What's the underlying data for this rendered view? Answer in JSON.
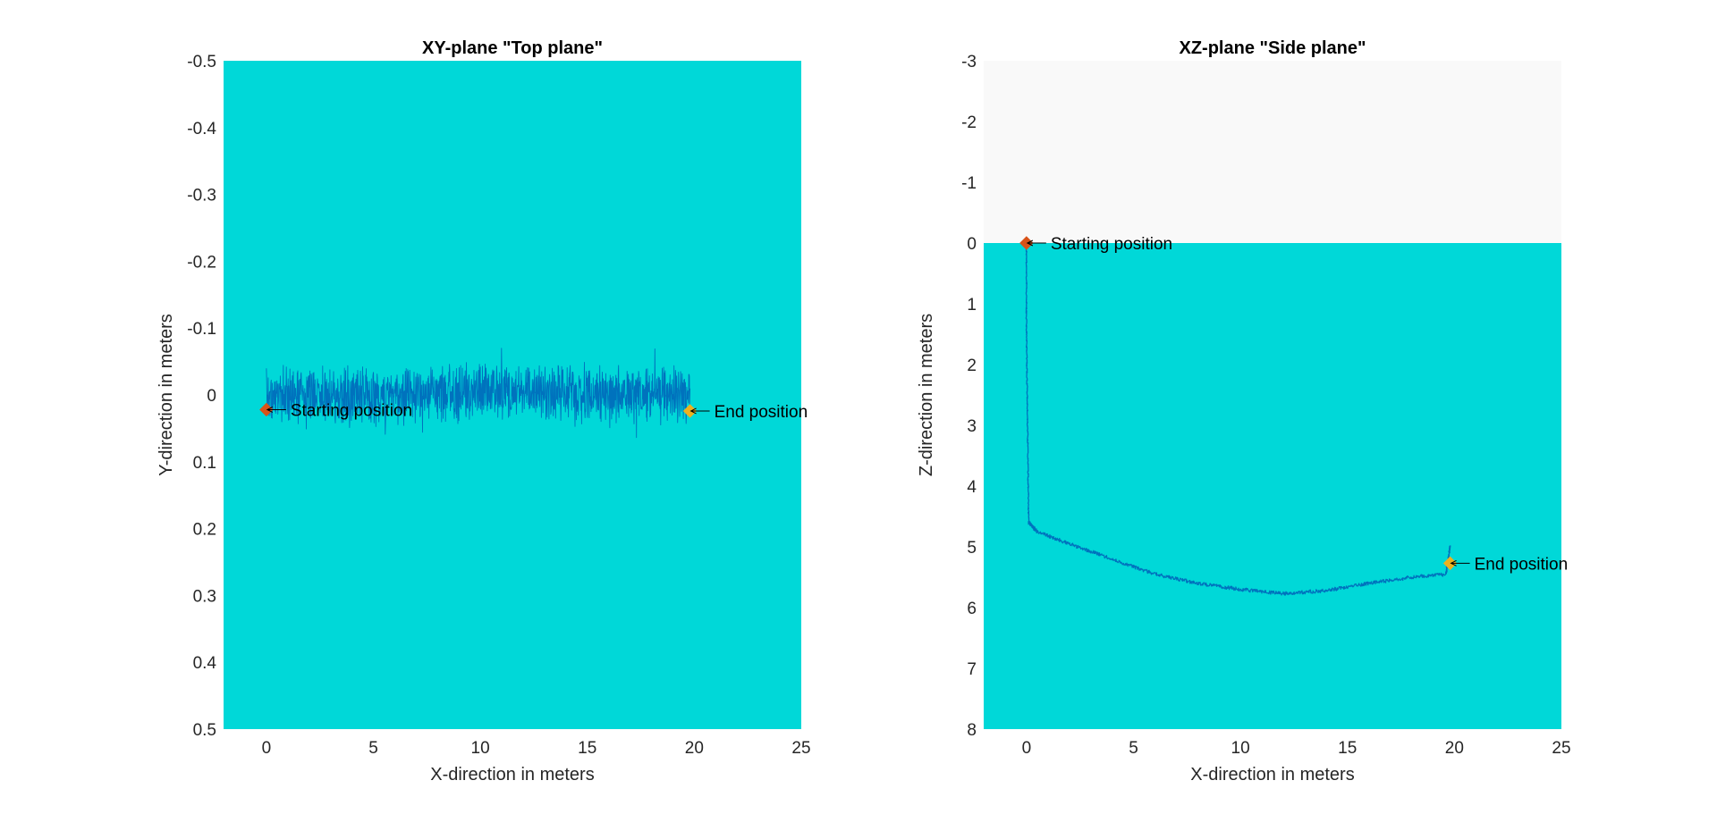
{
  "colors": {
    "water": "#00d8d8",
    "air": "#f9f9f9",
    "path": "#0072bd",
    "start_marker": "#d95319",
    "end_marker": "#edb120",
    "axis_text": "#262626",
    "arrow": "#000000"
  },
  "chart_data": [
    {
      "type": "line",
      "title": "XY-plane \"Top plane\"",
      "xlabel": "X-direction in meters",
      "ylabel": "Y-direction in meters",
      "xlim": [
        -2,
        25
      ],
      "ylim": [
        -0.5,
        0.5
      ],
      "y_reversed": true,
      "grid": false,
      "xticks": [
        "0",
        "5",
        "10",
        "15",
        "20",
        "25"
      ],
      "xtick_values": [
        0,
        5,
        10,
        15,
        20,
        25
      ],
      "yticks": [
        "-0.5",
        "-0.4",
        "-0.3",
        "-0.2",
        "-0.1",
        "0",
        "0.1",
        "0.2",
        "0.3",
        "0.4",
        "0.5"
      ],
      "ytick_values": [
        -0.5,
        -0.4,
        -0.3,
        -0.2,
        -0.1,
        0,
        0.1,
        0.2,
        0.3,
        0.4,
        0.5
      ],
      "background_regions": [
        {
          "from": -0.5,
          "to": 0.5,
          "color": "water"
        }
      ],
      "series": [
        {
          "style": "noisy-path",
          "x_range": [
            0,
            19.8
          ],
          "centerline": [
            [
              0,
              0.0
            ],
            [
              5,
              0.0
            ],
            [
              10,
              -0.005
            ],
            [
              15,
              0.0
            ],
            [
              19.8,
              0.0
            ]
          ],
          "envelope": 0.05,
          "color": "path"
        }
      ],
      "markers": [
        {
          "label": "Starting position",
          "x": 0,
          "y": 0.022,
          "color": "start_marker"
        },
        {
          "label": "End position",
          "x": 19.8,
          "y": 0.024,
          "color": "end_marker"
        }
      ]
    },
    {
      "type": "line",
      "title": "XZ-plane \"Side plane\"",
      "xlabel": "X-direction in meters",
      "ylabel": "Z-direction in meters",
      "xlim": [
        -2,
        25
      ],
      "ylim": [
        -3,
        8
      ],
      "y_reversed": true,
      "grid": false,
      "xticks": [
        "0",
        "5",
        "10",
        "15",
        "20",
        "25"
      ],
      "xtick_values": [
        0,
        5,
        10,
        15,
        20,
        25
      ],
      "yticks": [
        "-3",
        "-2",
        "-1",
        "0",
        "1",
        "2",
        "3",
        "4",
        "5",
        "6",
        "7",
        "8"
      ],
      "ytick_values": [
        -3,
        -2,
        -1,
        0,
        1,
        2,
        3,
        4,
        5,
        6,
        7,
        8
      ],
      "background_regions": [
        {
          "from": -3,
          "to": 0,
          "color": "air"
        },
        {
          "from": 0,
          "to": 8,
          "color": "water"
        }
      ],
      "series": [
        {
          "style": "noisy-path",
          "points": [
            [
              0,
              0.0
            ],
            [
              0.0,
              1.5
            ],
            [
              0.05,
              3.0
            ],
            [
              0.1,
              4.6
            ],
            [
              0.5,
              4.75
            ],
            [
              2,
              4.95
            ],
            [
              4,
              5.2
            ],
            [
              6,
              5.45
            ],
            [
              8,
              5.6
            ],
            [
              10,
              5.7
            ],
            [
              12,
              5.77
            ],
            [
              14,
              5.72
            ],
            [
              16,
              5.6
            ],
            [
              18,
              5.5
            ],
            [
              19.6,
              5.45
            ],
            [
              19.8,
              5.0
            ]
          ],
          "envelope": 0.03,
          "color": "path"
        }
      ],
      "markers": [
        {
          "label": "Starting position",
          "x": 0,
          "y": 0.0,
          "color": "start_marker"
        },
        {
          "label": "End position",
          "x": 19.8,
          "y": 5.27,
          "color": "end_marker"
        }
      ]
    }
  ]
}
